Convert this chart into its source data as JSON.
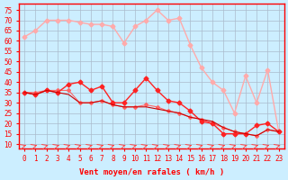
{
  "xlabel": "Vent moyen/en rafales ( km/h )",
  "ylabel": "",
  "bg_color": "#cceeff",
  "grid_color": "#aabbcc",
  "x": [
    0,
    1,
    2,
    3,
    4,
    5,
    6,
    7,
    8,
    9,
    10,
    11,
    12,
    13,
    14,
    15,
    16,
    17,
    18,
    19,
    20,
    21,
    22,
    23
  ],
  "line1": [
    62,
    65,
    70,
    70,
    70,
    69,
    68,
    68,
    67,
    59,
    67,
    70,
    75,
    70,
    71,
    58,
    47,
    40,
    36,
    25,
    43,
    30,
    46,
    16
  ],
  "line2": [
    35,
    34,
    36,
    35,
    39,
    40,
    36,
    38,
    30,
    30,
    36,
    42,
    36,
    31,
    30,
    26,
    21,
    20,
    15,
    15,
    15,
    19,
    20,
    16
  ],
  "line3": [
    35,
    34,
    36,
    35,
    34,
    30,
    30,
    31,
    29,
    28,
    28,
    28,
    27,
    26,
    25,
    23,
    22,
    21,
    18,
    16,
    15,
    14,
    17,
    16
  ],
  "line4": [
    35,
    35,
    36,
    36,
    36,
    30,
    30,
    31,
    29,
    28,
    28,
    29,
    28,
    26,
    25,
    23,
    22,
    20,
    18,
    16,
    15,
    14,
    17,
    16
  ],
  "line1_color": "#ffaaaa",
  "line2_color": "#ff2222",
  "line3_color": "#ff2222",
  "line4_color": "#ff6666",
  "ylim": [
    8,
    78
  ],
  "yticks": [
    10,
    15,
    20,
    25,
    30,
    35,
    40,
    45,
    50,
    55,
    60,
    65,
    70,
    75
  ],
  "arrow_color": "#ff4444"
}
